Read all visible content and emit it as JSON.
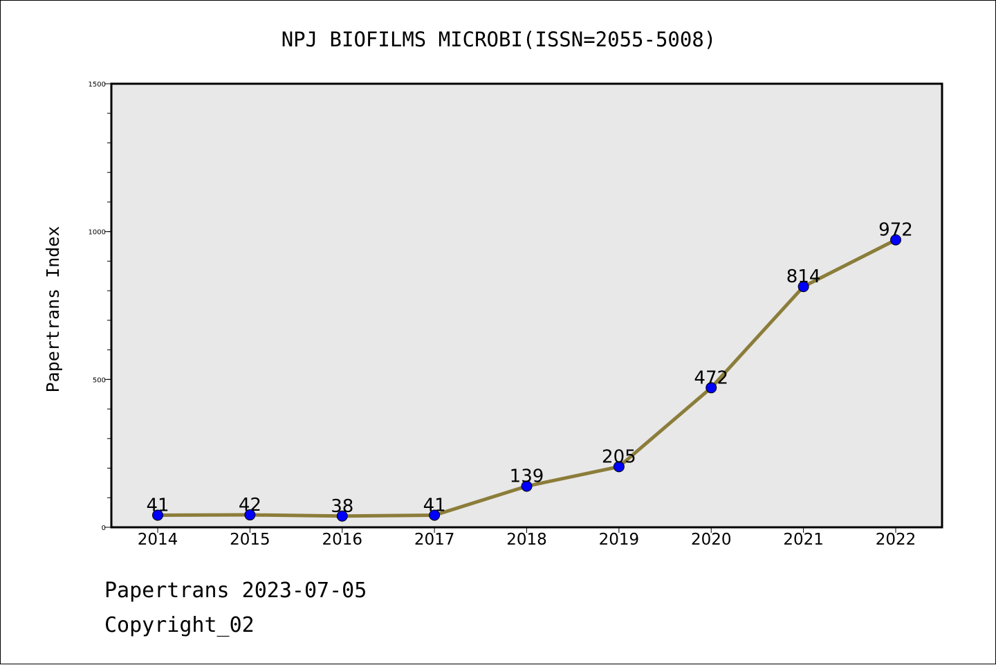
{
  "chart_data": {
    "type": "line",
    "title": "NPJ BIOFILMS MICROBI(ISSN=2055-5008)",
    "xlabel": "",
    "ylabel": "Papertrans Index",
    "categories": [
      "2014",
      "2015",
      "2016",
      "2017",
      "2018",
      "2019",
      "2020",
      "2021",
      "2022"
    ],
    "series": [
      {
        "name": "Papertrans Index",
        "values": [
          41,
          42,
          38,
          41,
          139,
          205,
          472,
          814,
          972
        ]
      }
    ],
    "ylim": [
      0,
      1500
    ],
    "yticks": [
      0,
      500,
      1000,
      1500
    ],
    "ytick_labels": [
      "0",
      "500",
      "1000",
      "1500"
    ],
    "grid": false,
    "data_labels": true,
    "colors": {
      "line": "#8b7d3a",
      "marker": "#0000ff",
      "plot_background": "#e8e8e8"
    }
  },
  "footer": {
    "line1": "Papertrans 2023-07-05",
    "line2": "Copyright_02"
  }
}
